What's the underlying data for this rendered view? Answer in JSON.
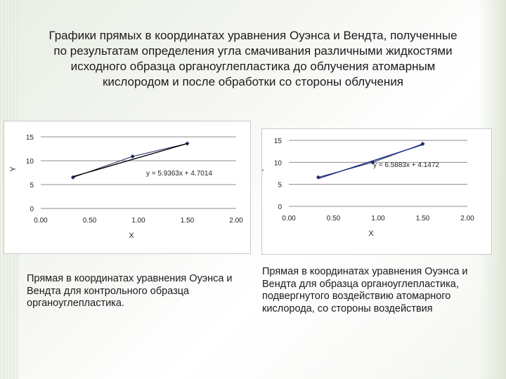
{
  "slide": {
    "title": "Графики прямых в координатах уравнения Оуэнса и Вендта, полученные по результатам  определения угла смачивания различными жидкостями исходного образца органоуглепластика до облучения атомарным кислородом и после обработки со стороны облучения",
    "caption_left": "Прямая в координатах уравнения Оуэнса и Вендта для контрольного образца органоуглепластика.",
    "caption_right": "Прямая в координатах уравнения Оуэнса и Вендта для образца органоуглепластика, подвергнутого воздействию атомарного кислорода, со стороны воздействия"
  },
  "chart_data": [
    {
      "type": "scatter",
      "xlabel": "X",
      "ylabel": "Y",
      "xlim": [
        0,
        2
      ],
      "ylim": [
        0,
        15
      ],
      "xticks": [
        "0.00",
        "0.50",
        "1.00",
        "1.50",
        "2.00"
      ],
      "yticks": [
        "0",
        "5",
        "10",
        "15"
      ],
      "grid": true,
      "series": [
        {
          "x": [
            0.33,
            0.94,
            1.5
          ],
          "y": [
            6.5,
            10.9,
            13.6
          ]
        }
      ],
      "trendline": {
        "slope": 5.9363,
        "intercept": 4.7014,
        "x_range": [
          0.33,
          1.5
        ],
        "label": "y = 5.9363x + 4.7014"
      },
      "colors": {
        "series": "#1f2a5c",
        "trend": "#000000",
        "grid": "#8c8c8c"
      }
    },
    {
      "type": "scatter",
      "xlabel": "X",
      "ylabel": "Y",
      "xlim": [
        0,
        2
      ],
      "ylim": [
        0,
        15
      ],
      "xticks": [
        "0.00",
        "0.50",
        "1.00",
        "1.50",
        "2.00"
      ],
      "yticks": [
        "0",
        "5",
        "10",
        "15"
      ],
      "grid": true,
      "series": [
        {
          "x": [
            0.33,
            0.94,
            1.5
          ],
          "y": [
            6.6,
            10.0,
            14.2
          ]
        }
      ],
      "trendline": {
        "slope": 6.5883,
        "intercept": 4.1472,
        "x_range": [
          0.33,
          1.5
        ],
        "label": "y = 6.5883x + 4.1472"
      },
      "colors": {
        "series": "#1f2a5c",
        "trend": "#1f2a8c",
        "grid": "#8c8c8c"
      }
    }
  ]
}
